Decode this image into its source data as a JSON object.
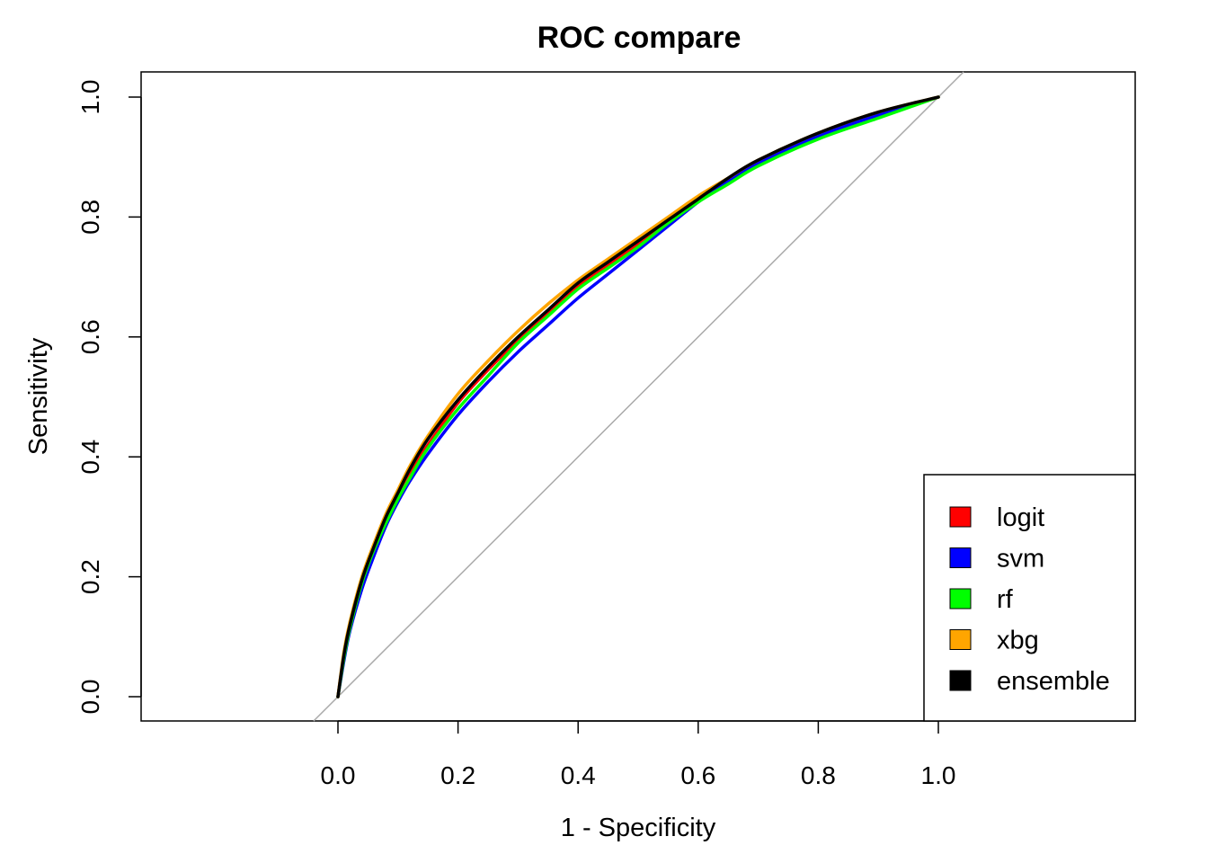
{
  "chart_data": {
    "type": "line",
    "title": "ROC compare",
    "xlabel": "1 - Specificity",
    "ylabel": "Sensitivity",
    "xlim": [
      0,
      1
    ],
    "ylim": [
      0,
      1
    ],
    "x_ticks": [
      "0.0",
      "0.2",
      "0.4",
      "0.6",
      "0.8",
      "1.0"
    ],
    "y_ticks": [
      "0.0",
      "0.2",
      "0.4",
      "0.6",
      "0.8",
      "1.0"
    ],
    "grid": false,
    "legend_position": "bottom-right",
    "reference_line": {
      "x": [
        0,
        1
      ],
      "y": [
        0,
        1
      ],
      "color": "#aaaaaa"
    },
    "series": [
      {
        "name": "logit",
        "color": "#ff0000",
        "x": [
          0,
          0.01,
          0.02,
          0.04,
          0.06,
          0.08,
          0.1,
          0.12,
          0.15,
          0.2,
          0.25,
          0.3,
          0.35,
          0.4,
          0.45,
          0.5,
          0.55,
          0.6,
          0.65,
          0.7,
          0.8,
          0.9,
          1.0
        ],
        "y": [
          0,
          0.07,
          0.12,
          0.195,
          0.25,
          0.3,
          0.34,
          0.375,
          0.42,
          0.49,
          0.545,
          0.595,
          0.64,
          0.685,
          0.72,
          0.755,
          0.79,
          0.83,
          0.86,
          0.89,
          0.935,
          0.97,
          1.0
        ]
      },
      {
        "name": "svm",
        "color": "#0000ff",
        "x": [
          0,
          0.01,
          0.02,
          0.04,
          0.06,
          0.08,
          0.1,
          0.12,
          0.15,
          0.2,
          0.25,
          0.3,
          0.35,
          0.4,
          0.45,
          0.5,
          0.55,
          0.6,
          0.65,
          0.7,
          0.8,
          0.9,
          1.0
        ],
        "y": [
          0,
          0.06,
          0.11,
          0.18,
          0.235,
          0.285,
          0.325,
          0.36,
          0.405,
          0.47,
          0.525,
          0.575,
          0.62,
          0.665,
          0.705,
          0.745,
          0.785,
          0.825,
          0.86,
          0.89,
          0.935,
          0.97,
          1.0
        ]
      },
      {
        "name": "rf",
        "color": "#00ff00",
        "x": [
          0,
          0.01,
          0.02,
          0.04,
          0.06,
          0.08,
          0.1,
          0.12,
          0.15,
          0.2,
          0.25,
          0.3,
          0.35,
          0.4,
          0.45,
          0.5,
          0.55,
          0.6,
          0.65,
          0.7,
          0.8,
          0.9,
          1.0
        ],
        "y": [
          0,
          0.065,
          0.115,
          0.19,
          0.245,
          0.29,
          0.33,
          0.365,
          0.415,
          0.48,
          0.535,
          0.59,
          0.635,
          0.68,
          0.715,
          0.75,
          0.79,
          0.825,
          0.855,
          0.885,
          0.93,
          0.965,
          1.0
        ]
      },
      {
        "name": "xbg",
        "color": "#ffa500",
        "x": [
          0,
          0.01,
          0.02,
          0.04,
          0.06,
          0.08,
          0.1,
          0.12,
          0.15,
          0.2,
          0.25,
          0.3,
          0.35,
          0.4,
          0.45,
          0.5,
          0.55,
          0.6,
          0.65,
          0.7,
          0.8,
          0.9,
          1.0
        ],
        "y": [
          0,
          0.075,
          0.125,
          0.2,
          0.255,
          0.305,
          0.345,
          0.385,
          0.435,
          0.505,
          0.56,
          0.61,
          0.655,
          0.695,
          0.73,
          0.765,
          0.8,
          0.835,
          0.865,
          0.895,
          0.94,
          0.975,
          1.0
        ]
      },
      {
        "name": "ensemble",
        "color": "#000000",
        "x": [
          0,
          0.01,
          0.02,
          0.04,
          0.06,
          0.08,
          0.1,
          0.12,
          0.15,
          0.2,
          0.25,
          0.3,
          0.35,
          0.4,
          0.45,
          0.5,
          0.55,
          0.6,
          0.65,
          0.7,
          0.8,
          0.9,
          1.0
        ],
        "y": [
          0,
          0.07,
          0.12,
          0.195,
          0.25,
          0.3,
          0.34,
          0.38,
          0.43,
          0.495,
          0.55,
          0.6,
          0.645,
          0.69,
          0.725,
          0.76,
          0.795,
          0.83,
          0.865,
          0.895,
          0.94,
          0.975,
          1.0
        ]
      }
    ]
  }
}
